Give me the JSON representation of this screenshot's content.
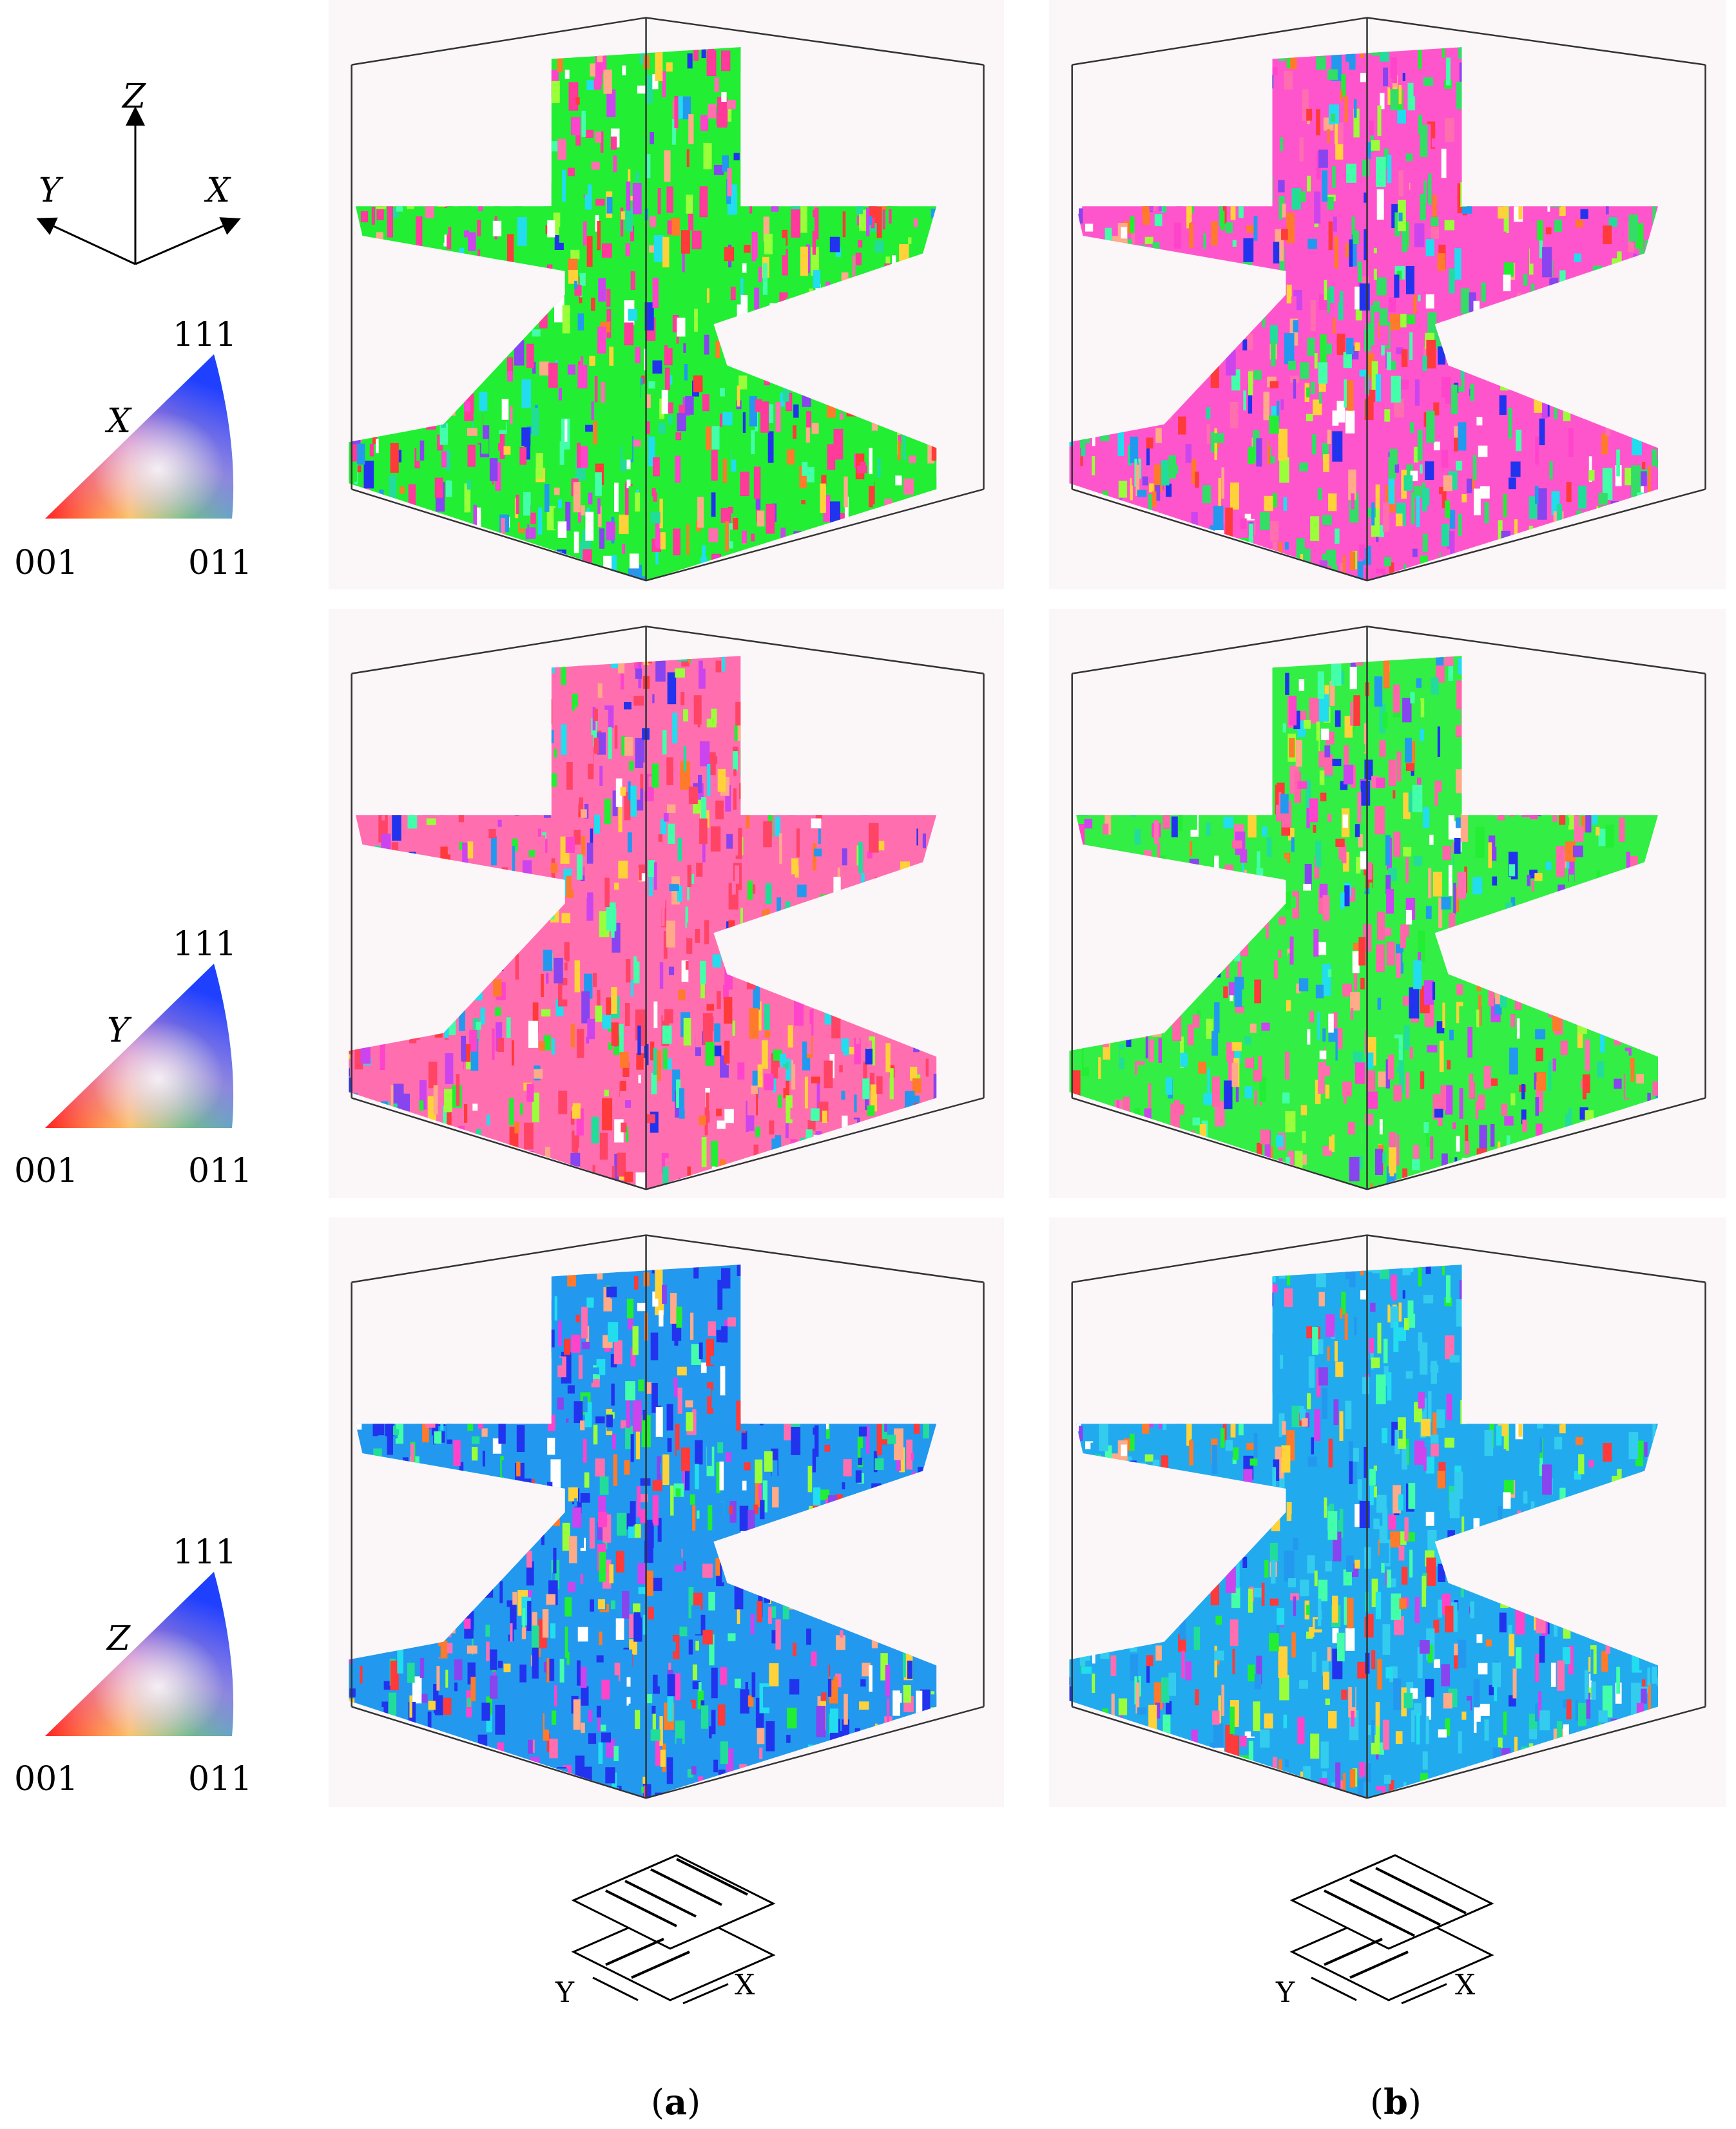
{
  "axes": {
    "z": "Z",
    "y": "Y",
    "x": "X"
  },
  "legends": [
    {
      "direction": "X",
      "corner_111": "111",
      "corner_001": "001",
      "corner_011": "011"
    },
    {
      "direction": "Y",
      "corner_111": "111",
      "corner_001": "001",
      "corner_011": "011"
    },
    {
      "direction": "Z",
      "corner_111": "111",
      "corner_001": "001",
      "corner_011": "011"
    }
  ],
  "scan_strategy": [
    {
      "y_label": "Y",
      "x_label": "X"
    },
    {
      "y_label": "Y",
      "x_label": "X"
    }
  ],
  "captions": {
    "a_open": "(",
    "a_letter": "a",
    "a_close": ")",
    "b_open": "(",
    "b_letter": "b",
    "b_close": ")"
  },
  "colors": {
    "background": "#fbf6f8",
    "box_line": "#333333"
  },
  "panels": [
    {
      "column": "a",
      "ipf_direction": "X",
      "dominant": [
        "#22ee33",
        "#ff3a9a"
      ]
    },
    {
      "column": "b",
      "ipf_direction": "X",
      "dominant": [
        "#ff55cc",
        "#33dd66"
      ]
    },
    {
      "column": "a",
      "ipf_direction": "Y",
      "dominant": [
        "#ff6fb0",
        "#ff4466"
      ]
    },
    {
      "column": "b",
      "ipf_direction": "Y",
      "dominant": [
        "#33ee44",
        "#ff66aa"
      ]
    },
    {
      "column": "a",
      "ipf_direction": "Z",
      "dominant": [
        "#2299ee",
        "#2233ee"
      ]
    },
    {
      "column": "b",
      "ipf_direction": "Z",
      "dominant": [
        "#22aaee",
        "#33ccee"
      ]
    }
  ]
}
